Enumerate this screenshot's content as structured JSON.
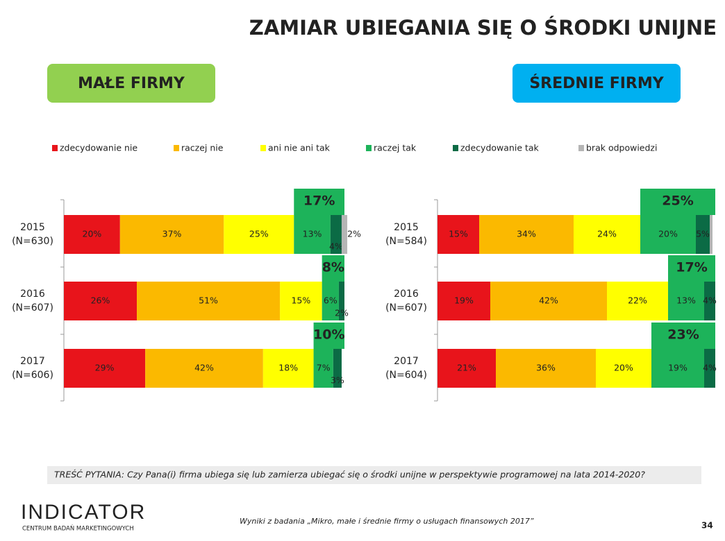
{
  "title": "ZAMIAR UBIEGANIA SIĘ O ŚRODKI UNIJNE",
  "series": [
    {
      "name": "zdecydowanie nie",
      "color": "#e8141b"
    },
    {
      "name": "raczej nie",
      "color": "#fbb900"
    },
    {
      "name": "ani nie ani tak",
      "color": "#ffff00"
    },
    {
      "name": "raczej tak",
      "color": "#1db35a"
    },
    {
      "name": "zdecydowanie tak",
      "color": "#0b6b45"
    },
    {
      "name": "brak odpowiedzi",
      "color": "#b5b5b5"
    }
  ],
  "chart_data": [
    {
      "type": "bar",
      "orientation": "horizontal",
      "stacked": true,
      "panel": "MAŁE FIRMY",
      "panel_color": "#92d050",
      "categories": [
        "2015",
        "2016",
        "2017"
      ],
      "sample_sizes": [
        "(N=630)",
        "(N=607)",
        "(N=606)"
      ],
      "xlim": [
        0,
        100
      ],
      "series": [
        {
          "values": [
            20,
            26,
            29
          ],
          "value_labels": [
            "20%",
            "26%",
            "29%"
          ]
        },
        {
          "values": [
            37,
            51,
            42
          ],
          "value_labels": [
            "37%",
            "51%",
            "42%"
          ]
        },
        {
          "values": [
            25,
            15,
            18
          ],
          "value_labels": [
            "25%",
            "15%",
            "18%"
          ]
        },
        {
          "values": [
            13,
            6,
            7
          ],
          "value_labels": [
            "13%",
            "6%",
            "7%"
          ]
        },
        {
          "values": [
            4,
            2,
            3
          ],
          "value_labels": [
            "4%",
            "2%",
            "3%"
          ]
        },
        {
          "values": [
            2,
            null,
            null
          ],
          "value_labels": [
            "2%",
            null,
            null
          ]
        }
      ],
      "totals": {
        "values": [
          17,
          8,
          10
        ],
        "value_labels": [
          "17%",
          "8%",
          "10%"
        ]
      }
    },
    {
      "type": "bar",
      "orientation": "horizontal",
      "stacked": true,
      "panel": "ŚREDNIE FIRMY",
      "panel_color": "#00b0f0",
      "categories": [
        "2015",
        "2016",
        "2017"
      ],
      "sample_sizes": [
        "(N=584)",
        "(N=607)",
        "(N=604)"
      ],
      "xlim": [
        0,
        100
      ],
      "series": [
        {
          "values": [
            15,
            19,
            21
          ],
          "value_labels": [
            "15%",
            "19%",
            "21%"
          ]
        },
        {
          "values": [
            34,
            42,
            36
          ],
          "value_labels": [
            "34%",
            "42%",
            "36%"
          ]
        },
        {
          "values": [
            24,
            22,
            20
          ],
          "value_labels": [
            "24%",
            "22%",
            "20%"
          ]
        },
        {
          "values": [
            20,
            13,
            19
          ],
          "value_labels": [
            "20%",
            "13%",
            "19%"
          ]
        },
        {
          "values": [
            5,
            4,
            4
          ],
          "value_labels": [
            "5%",
            "4%",
            "4%"
          ]
        },
        {
          "values": [
            1,
            null,
            null
          ],
          "value_labels": [
            null,
            null,
            null
          ]
        }
      ],
      "totals": {
        "values": [
          25,
          17,
          23
        ],
        "value_labels": [
          "25%",
          "17%",
          "23%"
        ]
      }
    }
  ],
  "question": "TREŚĆ PYTANIA: Czy Pana(i) firma ubiega się lub zamierza ubiegać się o środki unijne w perspektywie programowej na lata 2014-2020?",
  "footer": {
    "logo": "INDICATOR",
    "logo_subtitle": "CENTRUM BADAŃ MARKETINGOWYCH",
    "source": "Wyniki z badania „Mikro, małe i średnie firmy o usługach finansowych 2017”",
    "page": "34"
  }
}
